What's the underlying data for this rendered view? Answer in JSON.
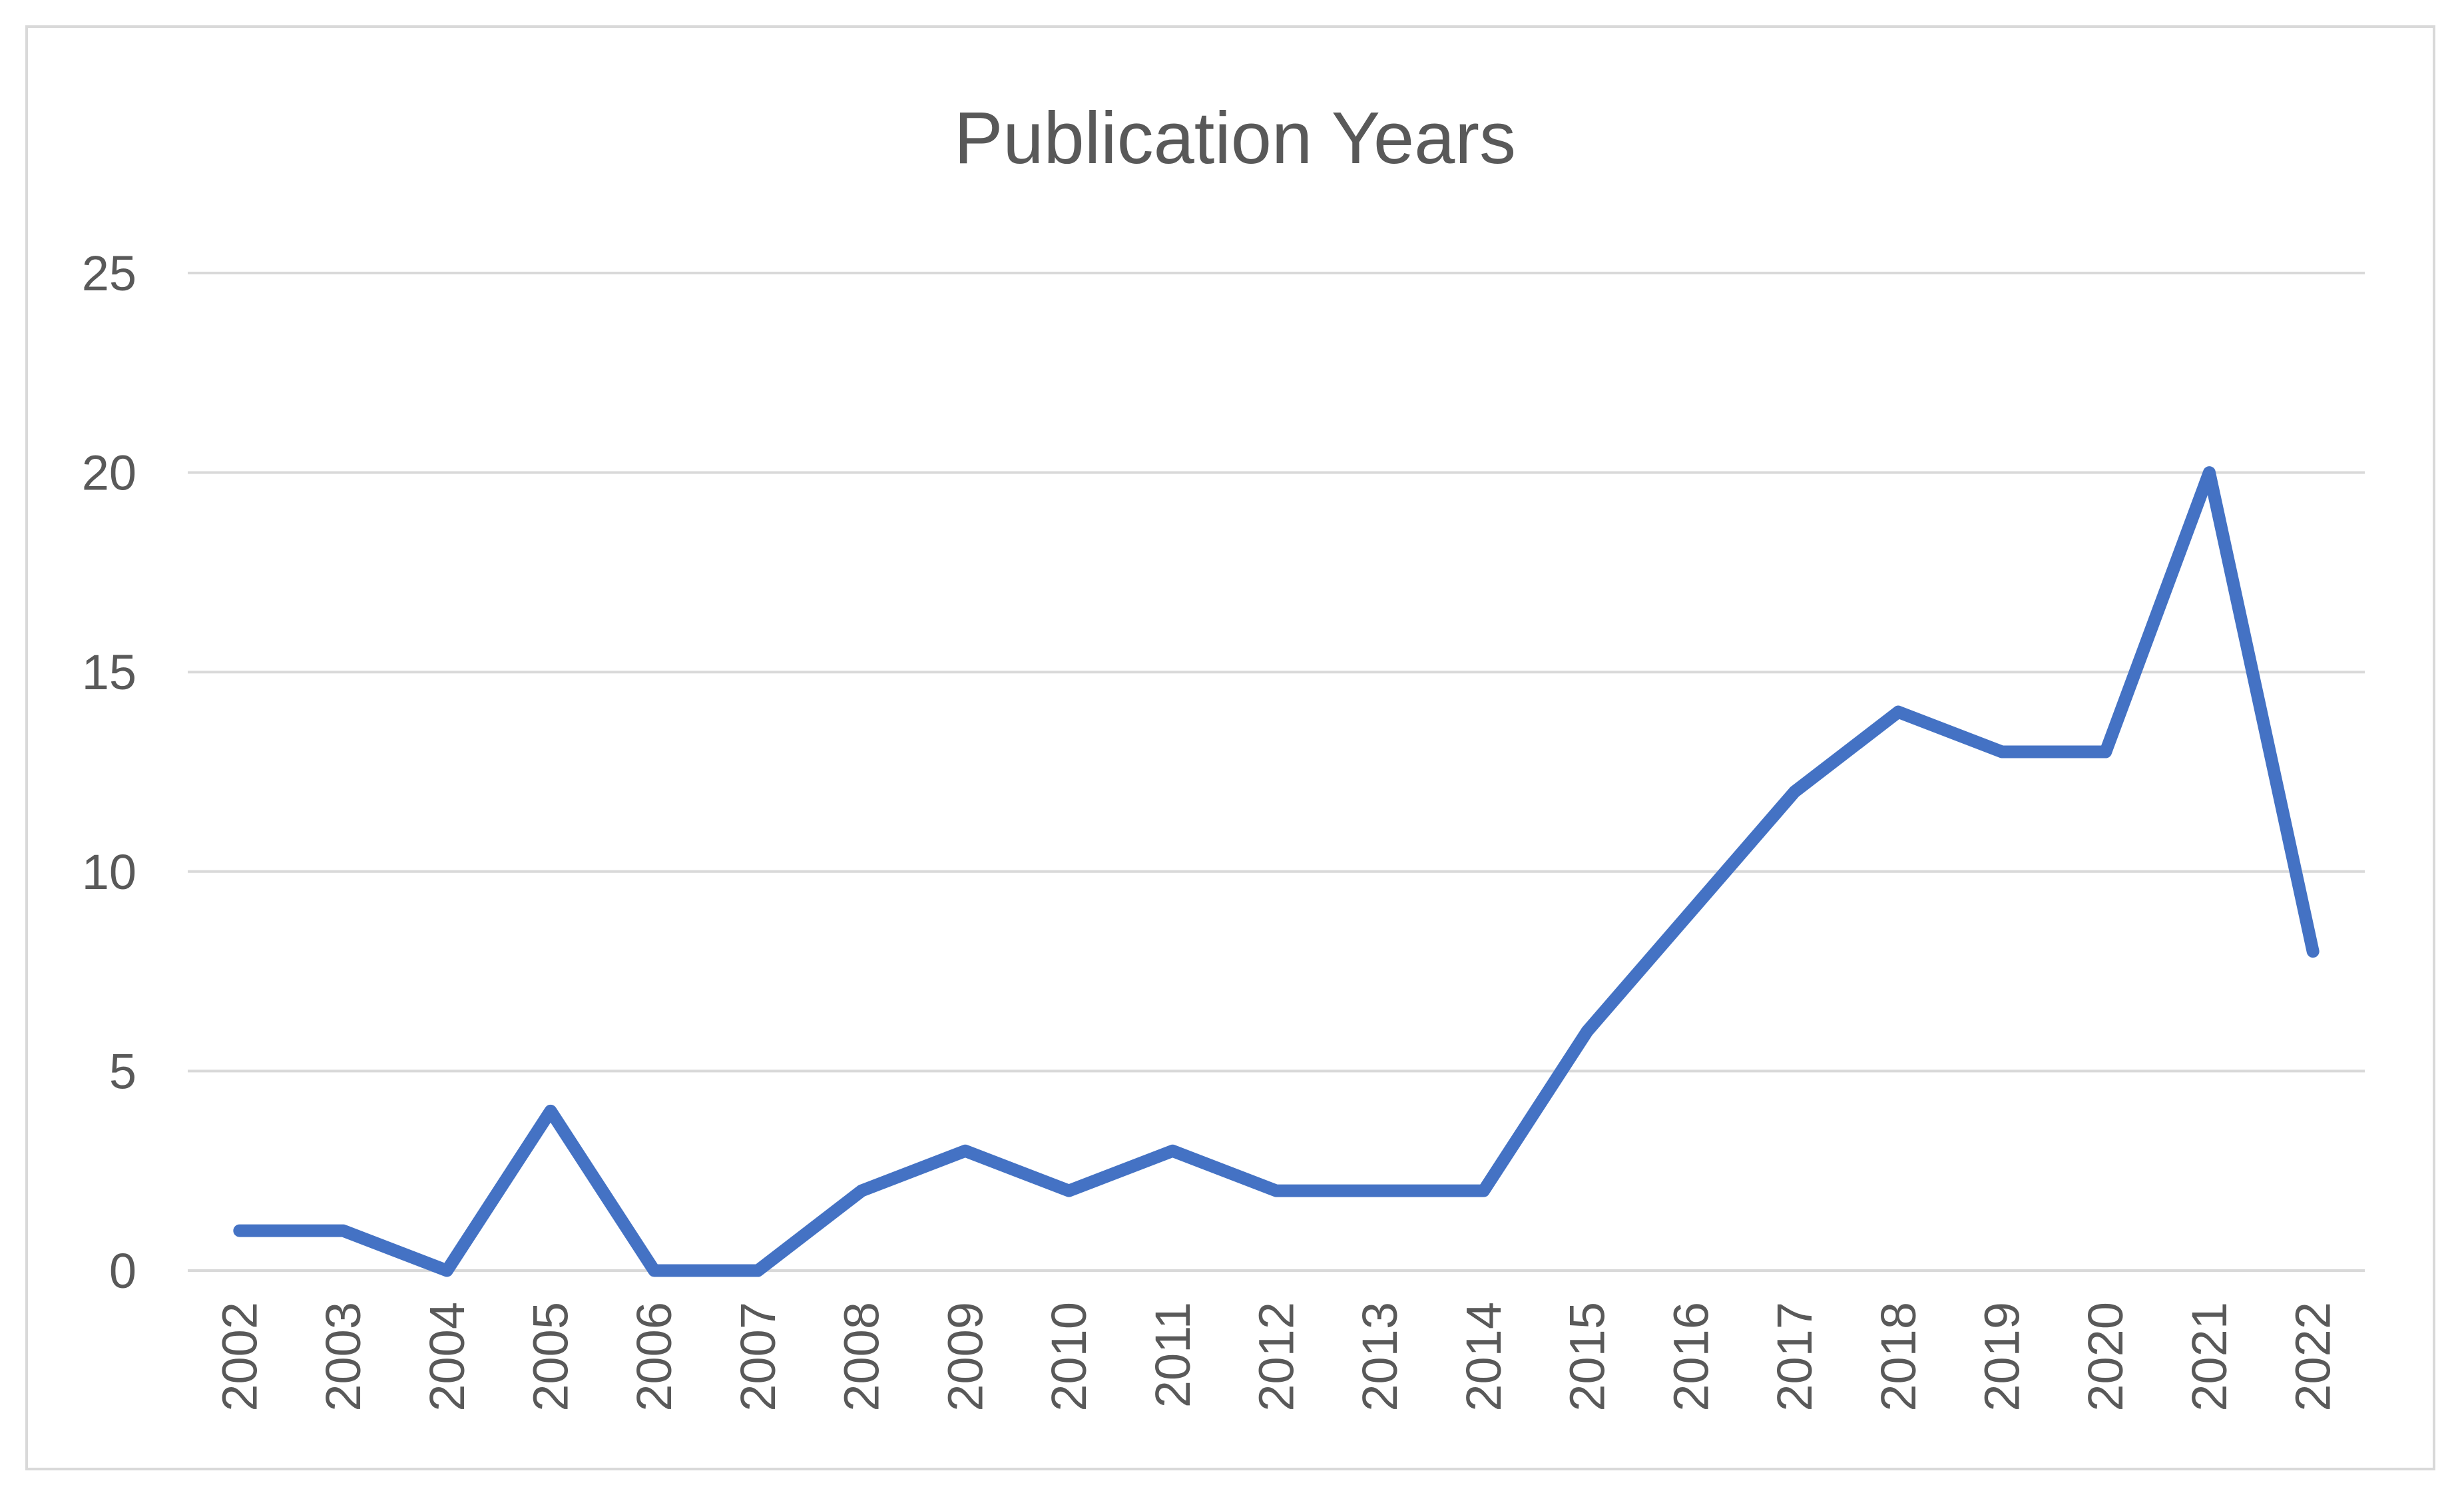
{
  "chart_data": {
    "type": "line",
    "title": "Publication Years",
    "xlabel": "",
    "ylabel": "",
    "categories": [
      "2002",
      "2003",
      "2004",
      "2005",
      "2006",
      "2007",
      "2008",
      "2009",
      "2010",
      "2011",
      "2012",
      "2013",
      "2014",
      "2015",
      "2016",
      "2017",
      "2018",
      "2019",
      "2020",
      "2021",
      "2022"
    ],
    "series": [
      {
        "values": [
          1,
          1,
          0,
          4,
          0,
          0,
          2,
          3,
          2,
          3,
          2,
          2,
          2,
          6,
          9,
          12,
          14,
          13,
          13,
          20,
          8
        ]
      }
    ],
    "ylim": [
      0,
      25
    ],
    "yticks": [
      "0",
      "5",
      "10",
      "15",
      "20",
      "25"
    ],
    "grid": true,
    "legend": "none",
    "colors": {
      "line": "#4472c4",
      "grid": "#d9d9d9",
      "text": "#595959",
      "border": "#d9d9d9"
    }
  }
}
